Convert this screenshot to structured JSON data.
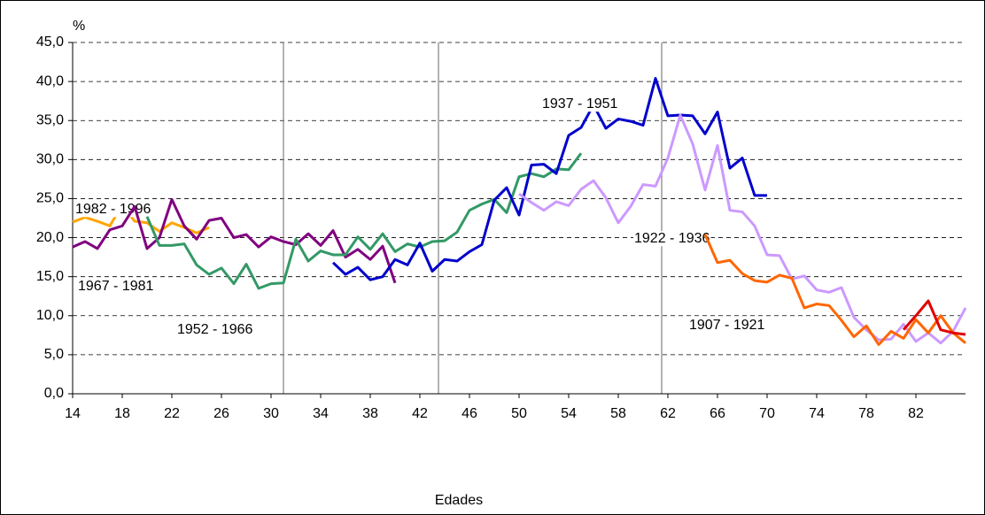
{
  "chart_data": {
    "type": "line",
    "y_label": "%",
    "x_label": "Edades",
    "xlim": [
      14,
      86
    ],
    "xticks": [
      14,
      18,
      22,
      26,
      30,
      34,
      38,
      42,
      46,
      50,
      54,
      58,
      62,
      66,
      70,
      74,
      78,
      82
    ],
    "ylim": [
      0,
      45
    ],
    "yticks": [
      {
        "value": 0,
        "label": "0,0"
      },
      {
        "value": 5,
        "label": "5,0"
      },
      {
        "value": 10,
        "label": "10,0"
      },
      {
        "value": 15,
        "label": "15,0"
      },
      {
        "value": 20,
        "label": "20,0"
      },
      {
        "value": 25,
        "label": "25,0"
      },
      {
        "value": 30,
        "label": "30,0"
      },
      {
        "value": 35,
        "label": "35,0"
      },
      {
        "value": 40,
        "label": "40,0"
      },
      {
        "value": 45,
        "label": "45,0"
      }
    ],
    "grid": true,
    "reference_lines_x": [
      31,
      43.5,
      61.5
    ],
    "series": [
      {
        "name": "1982 - 1996",
        "color": "#ffa500",
        "x": [
          14,
          15,
          16,
          17,
          18,
          19,
          20,
          21,
          22,
          23,
          24,
          25
        ],
        "values": [
          22.0,
          22.6,
          22.1,
          21.5,
          24.2,
          22.1,
          21.9,
          20.8,
          21.9,
          21.3,
          20.6,
          21.3
        ]
      },
      {
        "name": "1967 - 1981",
        "color": "#800080",
        "x": [
          14,
          15,
          16,
          17,
          18,
          19,
          20,
          21,
          22,
          23,
          24,
          25,
          26,
          27,
          28,
          29,
          30,
          31,
          32,
          33,
          34,
          35,
          36,
          37,
          38,
          39,
          40
        ],
        "values": [
          18.8,
          19.5,
          18.6,
          21.0,
          21.5,
          24.0,
          18.6,
          20.0,
          24.9,
          21.5,
          19.8,
          22.2,
          22.5,
          20.0,
          20.4,
          18.8,
          20.1,
          19.5,
          19.1,
          20.5,
          19.0,
          20.9,
          17.5,
          18.5,
          17.2,
          18.9,
          14.2
        ]
      },
      {
        "name": "1952 - 1966",
        "color": "#339966",
        "x": [
          20,
          21,
          22,
          23,
          24,
          25,
          26,
          27,
          28,
          29,
          30,
          31,
          32,
          33,
          34,
          35,
          36,
          37,
          38,
          39,
          40,
          41,
          42,
          43,
          44,
          45,
          46,
          47,
          48,
          49,
          50,
          51,
          52,
          53,
          54,
          55
        ],
        "values": [
          22.7,
          19.0,
          19.0,
          19.2,
          16.5,
          15.3,
          16.1,
          14.1,
          16.6,
          13.5,
          14.1,
          14.2,
          19.8,
          17.0,
          18.3,
          17.8,
          17.8,
          20.1,
          18.5,
          20.5,
          18.2,
          19.2,
          18.8,
          19.5,
          19.6,
          20.7,
          23.5,
          24.3,
          24.9,
          23.2,
          27.8,
          28.2,
          27.8,
          28.8,
          28.7,
          30.8
        ]
      },
      {
        "name": "1937 - 1951",
        "color": "#0000cc",
        "x": [
          35,
          36,
          37,
          38,
          39,
          40,
          41,
          42,
          43,
          44,
          45,
          46,
          47,
          48,
          49,
          50,
          51,
          52,
          53,
          54,
          55,
          56,
          57,
          58,
          59,
          60,
          61,
          62,
          63,
          64,
          65,
          66,
          67,
          68,
          69,
          70
        ],
        "values": [
          16.8,
          15.3,
          16.2,
          14.6,
          15.0,
          17.2,
          16.5,
          19.3,
          15.7,
          17.2,
          17.0,
          18.2,
          19.1,
          24.8,
          26.4,
          22.9,
          29.3,
          29.4,
          28.2,
          33.1,
          34.1,
          37.0,
          34.0,
          35.2,
          34.9,
          34.4,
          40.4,
          35.6,
          35.7,
          35.6,
          33.3,
          36.1,
          28.9,
          30.2,
          25.4,
          25.4
        ]
      },
      {
        "name": "1922 - 1936",
        "color": "#cc99ff",
        "x": [
          50,
          51,
          52,
          53,
          54,
          55,
          56,
          57,
          58,
          59,
          60,
          61,
          62,
          63,
          64,
          65,
          66,
          67,
          68,
          69,
          70,
          71,
          72,
          73,
          74,
          75,
          76,
          77,
          78,
          79,
          80,
          81,
          82,
          83,
          84,
          85,
          86
        ],
        "values": [
          25.6,
          24.5,
          23.5,
          24.6,
          24.1,
          26.2,
          27.3,
          25.1,
          21.9,
          24.0,
          26.8,
          26.6,
          30.2,
          35.7,
          32.0,
          26.1,
          31.8,
          23.5,
          23.3,
          21.5,
          17.8,
          17.7,
          14.7,
          15.1,
          13.3,
          13.0,
          13.6,
          9.8,
          8.2,
          6.9,
          7.0,
          8.9,
          6.7,
          7.8,
          6.5,
          8.0,
          11.0
        ]
      },
      {
        "name": "1907 - 1921",
        "color": "#ff6600",
        "x": [
          65,
          66,
          67,
          68,
          69,
          70,
          71,
          72,
          73,
          74,
          75,
          76,
          77,
          78,
          79,
          80,
          81,
          82,
          83,
          84,
          85,
          86
        ],
        "values": [
          20.4,
          16.8,
          17.1,
          15.4,
          14.5,
          14.3,
          15.2,
          14.8,
          11.0,
          11.5,
          11.3,
          9.4,
          7.3,
          8.7,
          6.3,
          8.0,
          7.1,
          9.5,
          7.8,
          10.0,
          7.8,
          6.5
        ]
      },
      {
        "color": "#e00000",
        "x": [
          81,
          82,
          83,
          84,
          85,
          86
        ],
        "values": [
          8.2,
          10.0,
          11.9,
          8.2,
          7.8,
          7.6
        ]
      }
    ]
  }
}
